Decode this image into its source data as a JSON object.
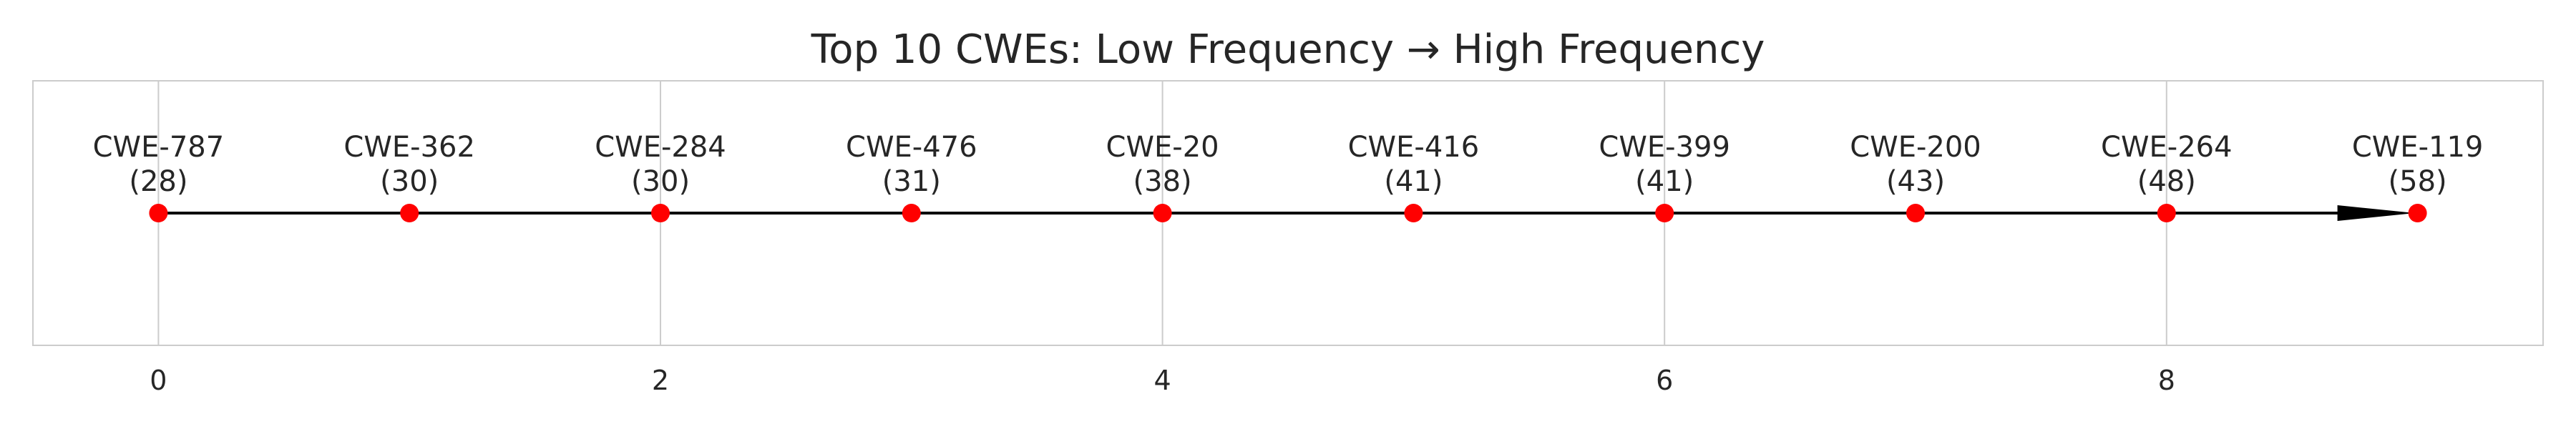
{
  "chart_data": {
    "type": "scatter",
    "title": "Top 10 CWEs: Low Frequency → High Frequency",
    "xlabel": "",
    "ylabel": "",
    "x": [
      0,
      1,
      2,
      3,
      4,
      5,
      6,
      7,
      8,
      9
    ],
    "y": [
      0,
      0,
      0,
      0,
      0,
      0,
      0,
      0,
      0,
      0
    ],
    "point_labels": [
      "CWE-787",
      "CWE-362",
      "CWE-284",
      "CWE-476",
      "CWE-20",
      "CWE-416",
      "CWE-399",
      "CWE-200",
      "CWE-264",
      "CWE-119"
    ],
    "counts": [
      28,
      30,
      30,
      31,
      38,
      41,
      41,
      43,
      48,
      58
    ],
    "xticks": [
      0,
      2,
      4,
      6,
      8
    ],
    "xlim": [
      -0.5,
      9.5
    ],
    "grid": true,
    "legend": "none",
    "arrow": true,
    "colors": {
      "point": "#ff0000",
      "line": "#000000",
      "grid": "#cccccc",
      "frame": "#cccccc",
      "text": "#262626"
    }
  }
}
